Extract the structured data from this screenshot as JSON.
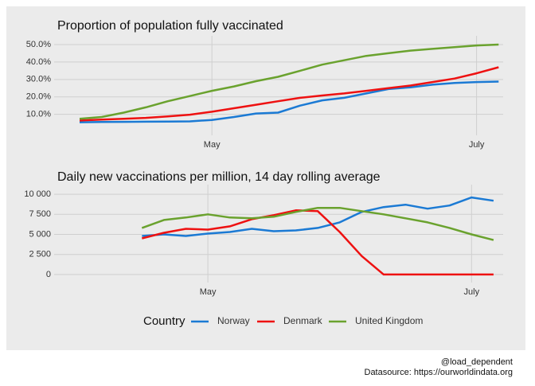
{
  "chart_data": [
    {
      "type": "line",
      "title": "Proportion of population fully vaccinated",
      "categories": [
        null,
        null,
        null,
        null,
        null,
        null,
        "May",
        null,
        null,
        null,
        null,
        null,
        null,
        null,
        null,
        null,
        null,
        null,
        "July",
        null
      ],
      "ylim": [
        -2,
        55
      ],
      "yticks": [
        {
          "value": 10,
          "label": "10.0%"
        },
        {
          "value": 20,
          "label": "20.0%"
        },
        {
          "value": 30,
          "label": "30.0%"
        },
        {
          "value": 40,
          "label": "40.0%"
        },
        {
          "value": 50,
          "label": "50.0%"
        }
      ],
      "grid": true,
      "series": [
        {
          "name": "Norway",
          "color": "#1b7ad4",
          "values": [
            5.5,
            5.6,
            5.7,
            5.8,
            5.9,
            6.0,
            6.8,
            8.5,
            10.5,
            11,
            15,
            18,
            19.5,
            22,
            24.5,
            25.5,
            27,
            28,
            28.5,
            28.8
          ]
        },
        {
          "name": "Denmark",
          "color": "#ee1111",
          "values": [
            6.5,
            7.0,
            7.5,
            8.0,
            8.8,
            9.8,
            11.5,
            13.5,
            15.5,
            17.5,
            19.5,
            20.8,
            22,
            23.5,
            25,
            26.5,
            28.5,
            30.5,
            33.5,
            37
          ]
        },
        {
          "name": "United Kingdom",
          "color": "#6aa22e",
          "values": [
            7.5,
            8.5,
            11,
            14,
            17.5,
            20.5,
            23.5,
            26,
            29,
            31.5,
            35,
            38.5,
            41,
            43.5,
            45,
            46.5,
            47.5,
            48.5,
            49.5,
            50
          ]
        }
      ]
    },
    {
      "type": "line",
      "title": "Daily new vaccinations per million, 14 day rolling average",
      "categories": [
        null,
        null,
        null,
        null,
        null,
        null,
        "May",
        null,
        null,
        null,
        null,
        null,
        null,
        null,
        null,
        null,
        null,
        null,
        "July",
        null
      ],
      "ylim": [
        -1000,
        11200
      ],
      "yticks": [
        0,
        {
          "value": 2500,
          "label": "2 500"
        },
        {
          "value": 5000,
          "label": "5 000"
        },
        {
          "value": 7500,
          "label": "7 500"
        },
        {
          "value": 10000,
          "label": "10 000"
        }
      ],
      "grid": true,
      "series": [
        {
          "color": "#1b7ad4",
          "values": [
            null,
            null,
            null,
            4800,
            5000,
            4800,
            5100,
            5300,
            5700,
            5400,
            5500,
            5800,
            6500,
            7800,
            8400,
            8700,
            8200,
            8600,
            9600,
            9200
          ]
        },
        {
          "color": "#ee1111",
          "values": [
            null,
            null,
            null,
            4500,
            5200,
            5700,
            5600,
            6000,
            6900,
            7400,
            8000,
            7900,
            5300,
            2300,
            0,
            0,
            0,
            0,
            0,
            0
          ]
        },
        {
          "color": "#6aa22e",
          "values": [
            null,
            null,
            null,
            5800,
            6800,
            7100,
            7500,
            7100,
            7000,
            7200,
            7800,
            8300,
            8300,
            7900,
            7500,
            7000,
            6500,
            5800,
            5000,
            4300
          ]
        }
      ]
    }
  ],
  "legend_title": "Country",
  "caption": [
    "@load_dependent",
    "Datasource: https://ourworldindata.org"
  ]
}
